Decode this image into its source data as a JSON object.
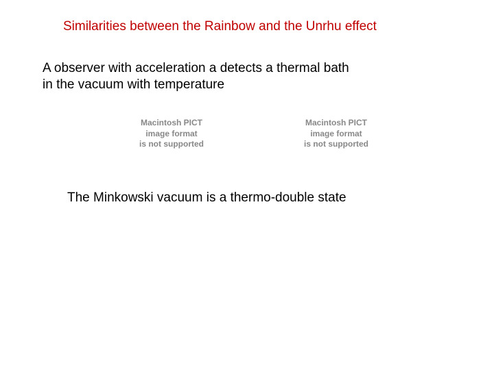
{
  "title": "Similarities between the Rainbow and the  Unrhu effect",
  "body_line1": "A observer with acceleration a  detects a thermal bath",
  "body_line2": "in the vacuum with temperature",
  "pict_line1": "Macintosh PICT",
  "pict_line2": "image format",
  "pict_line3": "is not supported",
  "conclusion": "The Minkowski vacuum  is a thermo-double state",
  "colors": {
    "title_color": "#c00000",
    "body_color": "#000000",
    "placeholder_color": "#888888",
    "background": "#ffffff"
  },
  "fontsizes": {
    "title": 19,
    "body": 19,
    "placeholder": 12
  }
}
